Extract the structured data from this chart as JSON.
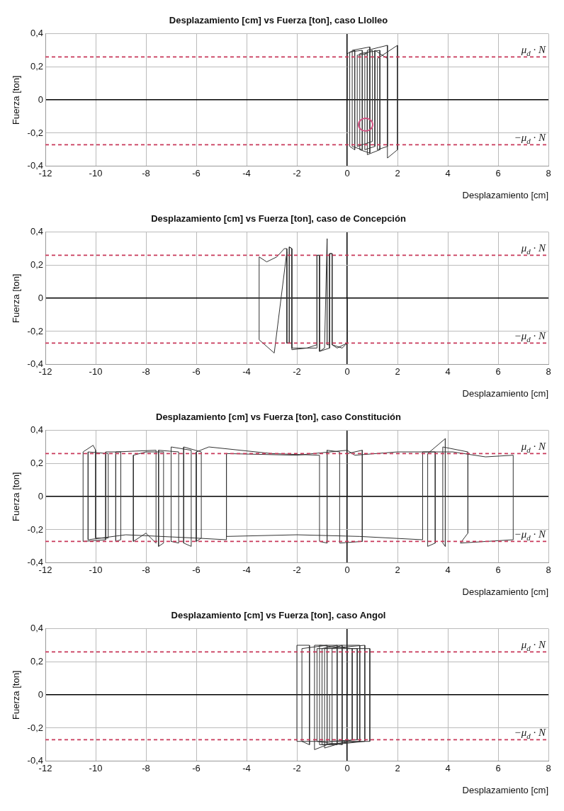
{
  "chart_data": [
    {
      "type": "line",
      "title": "Desplazamiento [cm] vs Fuerza [ton], caso Llolleo",
      "xlabel": "Desplazamiento [cm]",
      "ylabel": "Fuerza [ton]",
      "marker": "none",
      "grid": true,
      "xlim": [
        -12,
        8
      ],
      "xticks": [
        -12,
        -10,
        -8,
        -6,
        -4,
        -2,
        0,
        2,
        4,
        6,
        8
      ],
      "ylim": [
        -0.4,
        0.4
      ],
      "yticks": [
        {
          "value": -0.4,
          "label": "-0,4"
        },
        {
          "value": -0.2,
          "label": "-0,2"
        },
        {
          "value": 0,
          "label": "0"
        },
        {
          "value": 0.2,
          "label": "0,2"
        },
        {
          "value": 0.4,
          "label": "0,4"
        }
      ],
      "ref_lines": [
        {
          "axis": "y",
          "value": 0.26,
          "label": "μ$_{d}$ · N",
          "color": "#c8385a",
          "line_style": "dashed"
        },
        {
          "axis": "y",
          "value": -0.27,
          "label": "−μ$_{d}$ · N",
          "color": "#c8385a",
          "line_style": "dashed"
        }
      ],
      "series": [
        {
          "color": "#333333",
          "x": [
            0,
            0,
            0.3,
            0.3,
            0.1,
            0.1,
            0.6,
            0.6,
            0.2,
            0.2,
            0.9,
            0.9,
            0.5,
            0.5,
            1.3,
            1.3,
            0.8,
            0.8,
            1.6,
            1.6,
            1.2,
            1.2,
            2.0,
            2.0,
            1.6,
            1.6,
            1.1,
            1.1,
            0.7,
            0.7,
            1.0,
            1.0,
            0.4,
            0.4,
            0.8,
            0.8
          ],
          "values": [
            0,
            0.28,
            0.3,
            -0.3,
            -0.28,
            0.29,
            0.3,
            -0.3,
            -0.28,
            0.3,
            0.32,
            -0.32,
            -0.3,
            0.28,
            0.3,
            -0.3,
            -0.33,
            0.3,
            0.33,
            -0.28,
            -0.3,
            0.25,
            0.33,
            -0.3,
            -0.35,
            0.25,
            0.3,
            -0.28,
            -0.3,
            0.28,
            0.3,
            -0.25,
            -0.28,
            0.27,
            0.28,
            -0.2
          ]
        }
      ]
    },
    {
      "type": "line",
      "title": "Desplazamiento [cm] vs Fuerza [ton], caso de Concepción",
      "xlabel": "Desplazamiento [cm]",
      "ylabel": "Fuerza [ton]",
      "marker": "none",
      "grid": true,
      "xlim": [
        -12,
        8
      ],
      "xticks": [
        -12,
        -10,
        -8,
        -6,
        -4,
        -2,
        0,
        2,
        4,
        6,
        8
      ],
      "ylim": [
        -0.4,
        0.4
      ],
      "yticks": [
        {
          "value": -0.4,
          "label": "-0,4"
        },
        {
          "value": -0.2,
          "label": "-0,2"
        },
        {
          "value": 0,
          "label": "0"
        },
        {
          "value": 0.2,
          "label": "0,2"
        },
        {
          "value": 0.4,
          "label": "0,4"
        }
      ],
      "ref_lines": [
        {
          "axis": "y",
          "value": 0.26,
          "label": "μ$_{d}$ · N",
          "color": "#c8385a",
          "line_style": "dashed"
        },
        {
          "axis": "y",
          "value": -0.27,
          "label": "−μ$_{d}$ · N",
          "color": "#c8385a",
          "line_style": "dashed"
        }
      ],
      "series": [
        {
          "color": "#333333",
          "x": [
            0,
            0,
            -0.2,
            -0.6,
            -0.6,
            -0.7,
            -0.7,
            -1.1,
            -1.1,
            -1.2,
            -1.2,
            -1.6,
            -2.2,
            -2.2,
            -2.3,
            -2.3,
            -2.4,
            -2.4,
            -2.9,
            -3.5,
            -3.5,
            -3.2,
            -2.8,
            -2.5,
            -2.4,
            -2.4,
            -2.3,
            -2.3,
            -2.2,
            -2.2,
            -1.5,
            -1.2,
            -1.2,
            -1.1,
            -1.1,
            -0.9,
            -0.8,
            -0.8,
            -0.7,
            -0.7,
            -0.6,
            -0.6,
            -0.4,
            0
          ],
          "values": [
            0,
            -0.27,
            -0.3,
            -0.28,
            0.27,
            0.27,
            -0.3,
            -0.32,
            0.26,
            0.26,
            -0.28,
            -0.3,
            -0.31,
            0.3,
            0.31,
            -0.27,
            -0.27,
            0.28,
            -0.33,
            -0.25,
            0.25,
            0.22,
            0.25,
            0.3,
            0.3,
            -0.27,
            -0.27,
            0.31,
            0.3,
            -0.3,
            -0.3,
            -0.3,
            0.26,
            0.26,
            -0.32,
            -0.3,
            0.36,
            -0.28,
            -0.28,
            0.27,
            0.27,
            -0.28,
            -0.3,
            -0.27
          ]
        }
      ]
    },
    {
      "type": "line",
      "title": "Desplazamiento [cm] vs Fuerza [ton], caso Constitución",
      "xlabel": "Desplazamiento [cm]",
      "ylabel": "Fuerza [ton]",
      "marker": "none",
      "grid": true,
      "xlim": [
        -12,
        8
      ],
      "xticks": [
        -12,
        -10,
        -8,
        -6,
        -4,
        -2,
        0,
        2,
        4,
        6,
        8
      ],
      "ylim": [
        -0.4,
        0.4
      ],
      "yticks": [
        {
          "value": -0.4,
          "label": "-0,4"
        },
        {
          "value": -0.2,
          "label": "-0,2"
        },
        {
          "value": 0,
          "label": "0"
        },
        {
          "value": 0.2,
          "label": "0,2"
        },
        {
          "value": 0.4,
          "label": "0,4"
        }
      ],
      "ref_lines": [
        {
          "axis": "y",
          "value": 0.26,
          "label": "μ$_{d}$ · N",
          "color": "#c8385a",
          "line_style": "dashed"
        },
        {
          "axis": "y",
          "value": -0.27,
          "label": "−μ$_{d}$ · N",
          "color": "#c8385a",
          "line_style": "dashed"
        }
      ],
      "series": [
        {
          "color": "#333333",
          "x": [
            0,
            0,
            0.6,
            0.6,
            -0.3,
            -0.3,
            -0.8,
            -0.8,
            -1.1,
            -1.1,
            -3,
            -5.5,
            -6.0,
            -6.0,
            -5.8,
            -5.8,
            -6.5,
            -6.5,
            -6.2,
            -6.2,
            -7.0,
            -7.0,
            -6.7,
            -6.7,
            -7.5,
            -7.5,
            -7.3,
            -7.3,
            -8.0,
            -8.5,
            -8.5,
            -8.0,
            -7.6,
            -7.6,
            -9.2,
            -9.2,
            -9.0,
            -9.0,
            -9.6,
            -9.6,
            -10.5,
            -10.5,
            -10.1,
            -10.0,
            -10.0,
            -9.5,
            -9.5,
            -10.3,
            -10.3,
            -8.8,
            -6.0,
            -4.8,
            -4.8,
            -4.8,
            -2,
            0.5,
            3.0,
            3.0,
            3.5,
            3.5,
            3.2,
            3.2,
            3.9,
            3.9,
            3.8,
            3.8,
            4.8,
            4.8,
            4.5,
            6.6,
            6.6,
            5.5,
            4.2,
            2.0,
            0.3,
            0,
            -2,
            -4.8
          ],
          "values": [
            0,
            0.26,
            0.28,
            -0.27,
            -0.28,
            0.27,
            0.28,
            -0.28,
            -0.27,
            0.25,
            0.26,
            0.3,
            0.27,
            -0.27,
            -0.25,
            0.27,
            0.3,
            -0.28,
            -0.3,
            0.28,
            0.3,
            -0.27,
            -0.28,
            0.27,
            0.28,
            -0.3,
            -0.28,
            0.27,
            0.27,
            0.25,
            -0.27,
            -0.22,
            -0.28,
            0.28,
            0.27,
            -0.27,
            -0.26,
            0.27,
            0.27,
            -0.26,
            -0.27,
            0.27,
            0.31,
            0.28,
            -0.25,
            -0.25,
            0.26,
            0.27,
            -0.26,
            -0.23,
            -0.25,
            -0.26,
            0.26,
            -0.24,
            -0.23,
            -0.24,
            -0.26,
            0.27,
            0.27,
            -0.28,
            -0.3,
            0.26,
            0.35,
            -0.3,
            -0.28,
            0.3,
            0.27,
            -0.22,
            -0.28,
            -0.26,
            0.25,
            0.24,
            0.27,
            0.27,
            0.25,
            0.28,
            0.25,
            0.26
          ]
        }
      ]
    },
    {
      "type": "line",
      "title": "Desplazamiento [cm] vs Fuerza [ton], caso Angol",
      "xlabel": "Desplazamiento [cm]",
      "ylabel": "Fuerza [ton]",
      "marker": "none",
      "grid": true,
      "xlim": [
        -12,
        8
      ],
      "xticks": [
        -12,
        -10,
        -8,
        -6,
        -4,
        -2,
        0,
        2,
        4,
        6,
        8
      ],
      "ylim": [
        -0.4,
        0.4
      ],
      "yticks": [
        {
          "value": -0.4,
          "label": "-0,4"
        },
        {
          "value": -0.2,
          "label": "-0,2"
        },
        {
          "value": 0,
          "label": "0"
        },
        {
          "value": 0.2,
          "label": "0,2"
        },
        {
          "value": 0.4,
          "label": "0,4"
        }
      ],
      "ref_lines": [
        {
          "axis": "y",
          "value": 0.26,
          "label": "μ$_{d}$ · N",
          "color": "#c8385a",
          "line_style": "dashed"
        },
        {
          "axis": "y",
          "value": -0.27,
          "label": "−μ$_{d}$ · N",
          "color": "#c8385a",
          "line_style": "dashed"
        }
      ],
      "series": [
        {
          "color": "#333333",
          "x": [
            0,
            0,
            0.9,
            0.9,
            -2.0,
            -2.0,
            -1.5,
            -1.5,
            -1.8,
            -1.8,
            -0.8,
            -0.8,
            -1.3,
            -1.3,
            0.5,
            0.5,
            -1.0,
            -1.0,
            -0.4,
            -0.4,
            -1.1,
            -1.1,
            0.2,
            0.2,
            -0.9,
            -0.9,
            0.7,
            0.7,
            -0.6,
            -0.6,
            -0.2,
            -0.2,
            -1.2,
            -1.2,
            0.4,
            0.4,
            -0.7,
            -0.7
          ],
          "values": [
            0,
            0.28,
            0.28,
            -0.28,
            -0.28,
            0.3,
            0.3,
            -0.3,
            -0.28,
            0.28,
            0.3,
            -0.3,
            -0.33,
            0.3,
            0.3,
            -0.28,
            -0.3,
            0.28,
            0.3,
            -0.3,
            -0.3,
            0.3,
            0.28,
            -0.27,
            -0.32,
            0.28,
            0.3,
            -0.28,
            -0.3,
            0.28,
            0.3,
            -0.3,
            -0.28,
            0.28,
            0.28,
            -0.27,
            -0.28,
            0
          ]
        }
      ]
    }
  ]
}
